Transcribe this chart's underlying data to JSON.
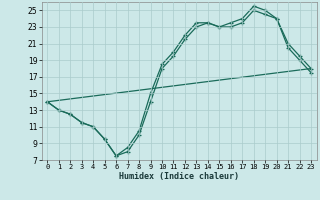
{
  "xlabel": "Humidex (Indice chaleur)",
  "bg_color": "#cce8e8",
  "grid_color": "#aacccc",
  "line_color": "#1a6b5a",
  "xlim": [
    -0.5,
    23.5
  ],
  "ylim": [
    7,
    26
  ],
  "xticks": [
    0,
    1,
    2,
    3,
    4,
    5,
    6,
    7,
    8,
    9,
    10,
    11,
    12,
    13,
    14,
    15,
    16,
    17,
    18,
    19,
    20,
    21,
    22,
    23
  ],
  "yticks": [
    7,
    9,
    11,
    13,
    15,
    17,
    19,
    21,
    23,
    25
  ],
  "line1_x": [
    0,
    1,
    2,
    3,
    4,
    5,
    6,
    7,
    8,
    9,
    10,
    11,
    12,
    13,
    14,
    15,
    16,
    17,
    18,
    19,
    20,
    21,
    22,
    23
  ],
  "line1_y": [
    14,
    13,
    12.5,
    11.5,
    11,
    9.5,
    7.5,
    8.5,
    10.5,
    15,
    18.5,
    20,
    22,
    23.5,
    23.5,
    23,
    23.5,
    24,
    25.5,
    25,
    24,
    21,
    19.5,
    18
  ],
  "line2_x": [
    0,
    1,
    2,
    3,
    4,
    5,
    6,
    7,
    8,
    9,
    10,
    11,
    12,
    13,
    14,
    15,
    16,
    17,
    18,
    19,
    20,
    21,
    22,
    23
  ],
  "line2_y": [
    14,
    13,
    12.5,
    11.5,
    11,
    9.5,
    7.5,
    8,
    10,
    14,
    18,
    19.5,
    21.5,
    23,
    23.5,
    23,
    23,
    23.5,
    25,
    24.5,
    24,
    20.5,
    19,
    17.5
  ],
  "line3_x": [
    0,
    23
  ],
  "line3_y": [
    14,
    18
  ]
}
